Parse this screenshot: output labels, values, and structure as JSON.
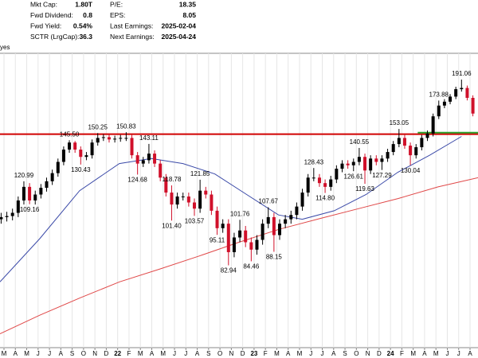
{
  "info": {
    "left": [
      {
        "label": "Mkt Cap:",
        "value": "1.80T"
      },
      {
        "label": "Fwd Dividend:",
        "value": "0.8"
      },
      {
        "label": "Fwd Yield:",
        "value": "0.54%"
      },
      {
        "label": "SCTR (LrgCap):",
        "value": "36.3"
      }
    ],
    "right": [
      {
        "label": "P/E:",
        "value": "18.35"
      },
      {
        "label": "EPS:",
        "value": "8.05"
      },
      {
        "label": "Last Earnings:",
        "value": "2025-02-04"
      },
      {
        "label": "Next Earnings:",
        "value": "2025-04-24"
      }
    ],
    "side_text": "yes"
  },
  "chart_data": {
    "type": "candlestick",
    "log": true,
    "grid": true,
    "up_color": "#000000",
    "down_color": "#d0102a",
    "xlim": [
      -0.35,
      41.7
    ],
    "ylim": [
      57.3,
      215
    ],
    "xticks": [
      {
        "value": 0,
        "label": "M"
      },
      {
        "value": 1,
        "label": "A"
      },
      {
        "value": 2,
        "label": "M"
      },
      {
        "value": 3,
        "label": "J"
      },
      {
        "value": 4,
        "label": "J"
      },
      {
        "value": 5,
        "label": "A"
      },
      {
        "value": 6,
        "label": "S"
      },
      {
        "value": 7,
        "label": "O"
      },
      {
        "value": 8,
        "label": "N"
      },
      {
        "value": 9,
        "label": "D"
      },
      {
        "value": 10,
        "label": "22"
      },
      {
        "value": 11,
        "label": "F"
      },
      {
        "value": 12,
        "label": "M"
      },
      {
        "value": 13,
        "label": "A"
      },
      {
        "value": 14,
        "label": "M"
      },
      {
        "value": 15,
        "label": "J"
      },
      {
        "value": 16,
        "label": "J"
      },
      {
        "value": 17,
        "label": "A"
      },
      {
        "value": 18,
        "label": "S"
      },
      {
        "value": 19,
        "label": "O"
      },
      {
        "value": 20,
        "label": "N"
      },
      {
        "value": 21,
        "label": "D"
      },
      {
        "value": 22,
        "label": "23"
      },
      {
        "value": 23,
        "label": "F"
      },
      {
        "value": 24,
        "label": "M"
      },
      {
        "value": 25,
        "label": "A"
      },
      {
        "value": 26,
        "label": "M"
      },
      {
        "value": 27,
        "label": "J"
      },
      {
        "value": 28,
        "label": "J"
      },
      {
        "value": 29,
        "label": "A"
      },
      {
        "value": 30,
        "label": "S"
      },
      {
        "value": 31,
        "label": "O"
      },
      {
        "value": 32,
        "label": "N"
      },
      {
        "value": 33,
        "label": "D"
      },
      {
        "value": 34,
        "label": "24"
      },
      {
        "value": 35,
        "label": "F"
      },
      {
        "value": 36,
        "label": "M"
      },
      {
        "value": 37,
        "label": "A"
      },
      {
        "value": 38,
        "label": "M"
      },
      {
        "value": 39,
        "label": "J"
      },
      {
        "value": 40,
        "label": "J"
      },
      {
        "value": 41,
        "label": "A"
      }
    ],
    "x": [
      -0.25,
      0.25,
      0.75,
      1.25,
      1.75,
      2.25,
      2.75,
      3.25,
      3.75,
      4.25,
      4.75,
      5.25,
      5.75,
      6.25,
      6.75,
      7.25,
      7.75,
      8.25,
      8.75,
      9.25,
      9.75,
      10.25,
      10.75,
      11.25,
      11.75,
      12.25,
      12.75,
      13.25,
      13.75,
      14.25,
      14.75,
      15.25,
      15.75,
      16.25,
      16.75,
      17.25,
      17.75,
      18.25,
      18.75,
      19.25,
      19.75,
      20.25,
      20.75,
      21.25,
      21.75,
      22.25,
      22.75,
      23.25,
      23.75,
      24.25,
      24.75,
      25.25,
      25.75,
      26.25,
      26.75,
      27.25,
      27.75,
      28.25,
      28.75,
      29.25,
      29.75,
      30.25,
      30.75,
      31.25,
      31.75,
      32.25,
      32.75,
      33.25,
      33.75,
      34.25,
      34.75,
      35.25,
      35.75,
      36.25,
      36.75,
      37.25,
      37.75,
      38.25,
      38.75,
      39.25,
      39.75,
      40.25,
      40.75,
      41.25
    ],
    "open": [
      102,
      103,
      103.5,
      105,
      111,
      118,
      111,
      114,
      117.5,
      121,
      125.5,
      132,
      139.5,
      144,
      139.5,
      135,
      136,
      144,
      147,
      147.5,
      146,
      146.5,
      147,
      147,
      136,
      131,
      133,
      137,
      131,
      123,
      115,
      109,
      113,
      113,
      110,
      107,
      116,
      114,
      106,
      98,
      100,
      88,
      94,
      97,
      92,
      89,
      93,
      100,
      103,
      95,
      100,
      102,
      104,
      108,
      115,
      123,
      123,
      120,
      118,
      122,
      128,
      131,
      130,
      132,
      135,
      127,
      134,
      132,
      134,
      138,
      143,
      147,
      142,
      136,
      141,
      147,
      150,
      162,
      170,
      173,
      177,
      183,
      184,
      176
    ],
    "high": [
      105,
      105.5,
      107,
      113,
      120.99,
      120,
      116,
      119.5,
      123,
      127.5,
      134,
      141.5,
      145.5,
      145,
      141.5,
      138,
      146,
      150.25,
      149.5,
      149.5,
      148.5,
      149,
      150.83,
      149,
      138,
      135,
      143.11,
      139,
      133,
      125,
      118.78,
      115,
      115,
      115,
      112,
      121.85,
      118,
      116,
      108,
      102,
      102,
      96,
      101.76,
      99,
      94,
      95,
      102,
      107.67,
      105,
      102,
      104,
      106,
      110,
      117,
      125,
      128.43,
      125,
      122,
      124,
      130,
      133,
      133,
      134,
      140.55,
      137,
      136,
      136,
      136,
      140,
      145,
      153.05,
      149,
      144,
      143,
      149,
      152,
      164,
      173.88,
      175,
      179,
      185,
      191.06,
      186,
      178
    ],
    "low": [
      100,
      101,
      101.5,
      103,
      109,
      109.16,
      109,
      112,
      115.5,
      119,
      123.5,
      130,
      137.5,
      137.5,
      130.43,
      133,
      134,
      142,
      145,
      144,
      144,
      144.5,
      145,
      134,
      124.68,
      129,
      131,
      129,
      121,
      113,
      101.4,
      107,
      111,
      108,
      103.57,
      105,
      112,
      104,
      95.11,
      96,
      82.94,
      86,
      92,
      90,
      84.46,
      87,
      91,
      98,
      88.15,
      93,
      98,
      100,
      102,
      106,
      113,
      121,
      118,
      114.8,
      116,
      120,
      126,
      128,
      126.61,
      130,
      119.63,
      125,
      130,
      127.29,
      132,
      136,
      141,
      140,
      130.04,
      134,
      139,
      145,
      148,
      160,
      168,
      171,
      175,
      181,
      174,
      162
    ],
    "close": [
      103,
      103.5,
      105,
      111,
      118,
      111,
      114,
      117.5,
      121,
      125.5,
      132,
      139.5,
      144,
      139.5,
      135,
      136,
      144,
      147,
      147.5,
      146,
      146.5,
      147,
      147,
      136,
      131,
      133,
      137,
      131,
      123,
      115,
      109,
      113,
      113,
      110,
      107,
      116,
      114,
      106,
      98,
      100,
      88,
      94,
      97,
      92,
      89,
      93,
      100,
      103,
      95,
      100,
      102,
      104,
      108,
      115,
      123,
      123,
      120,
      118,
      122,
      128,
      131,
      130,
      132,
      135,
      127,
      134,
      132,
      134,
      138,
      143,
      147,
      142,
      136,
      141,
      147,
      150,
      162,
      170,
      173,
      177,
      183,
      184,
      176,
      164
    ],
    "annotations": [
      {
        "x": 1.75,
        "value": 120.99
      },
      {
        "x": 2.25,
        "value": 109.16
      },
      {
        "x": 5.75,
        "value": 145.5,
        "label": "145.50"
      },
      {
        "x": 6.75,
        "value": 130.43
      },
      {
        "x": 8.25,
        "value": 150.25
      },
      {
        "x": 10.75,
        "value": 150.83
      },
      {
        "x": 11.75,
        "value": 124.68
      },
      {
        "x": 12.75,
        "value": 143.11
      },
      {
        "x": 14.75,
        "value": 118.78
      },
      {
        "x": 14.75,
        "value": 101.4,
        "label": "101.40"
      },
      {
        "x": 16.75,
        "value": 103.57
      },
      {
        "x": 17.25,
        "value": 121.85
      },
      {
        "x": 18.75,
        "value": 95.11
      },
      {
        "x": 19.75,
        "value": 82.94
      },
      {
        "x": 20.75,
        "value": 101.76
      },
      {
        "x": 21.75,
        "value": 84.46
      },
      {
        "x": 23.25,
        "value": 107.67
      },
      {
        "x": 23.75,
        "value": 88.15
      },
      {
        "x": 27.25,
        "value": 128.43
      },
      {
        "x": 28.25,
        "value": 114.8,
        "label": "114.80"
      },
      {
        "x": 30.75,
        "value": 126.61
      },
      {
        "x": 31.25,
        "value": 140.55
      },
      {
        "x": 31.75,
        "value": 119.63
      },
      {
        "x": 33.25,
        "value": 127.29
      },
      {
        "x": 34.75,
        "value": 153.05
      },
      {
        "x": 35.75,
        "value": 130.04
      },
      {
        "x": 38.25,
        "value": 173.88
      },
      {
        "x": 40.25,
        "value": 191.06
      }
    ],
    "overlays": [
      {
        "color": "#3b4aa8",
        "x": [
          -0.35,
          3.15,
          6.65,
          10.15,
          12.95,
          15.75,
          18.55,
          21.35,
          24.15,
          26.25,
          29.05,
          31.85,
          34.65,
          37.45,
          40.25
        ],
        "values": [
          77,
          93.5,
          116,
          131,
          134,
          131,
          125,
          114,
          104,
          102,
          106,
          114,
          126,
          136,
          148
        ]
      },
      {
        "color": "#e04848",
        "x": [
          -0.35,
          3.15,
          6.65,
          10.16,
          13.67,
          17.17,
          20.67,
          24.18,
          27.68,
          31.18,
          34.69,
          38.19,
          41.7
        ],
        "values": [
          61,
          66.3,
          71.6,
          77,
          81.5,
          86.5,
          92,
          97.5,
          102.2,
          107,
          112,
          118,
          123
        ]
      }
    ],
    "levels": [
      {
        "value": 149.5,
        "color": "#d00000",
        "from": -0.35
      },
      {
        "value": 150.5,
        "color": "#2aa02a",
        "from": 36.4
      }
    ]
  }
}
